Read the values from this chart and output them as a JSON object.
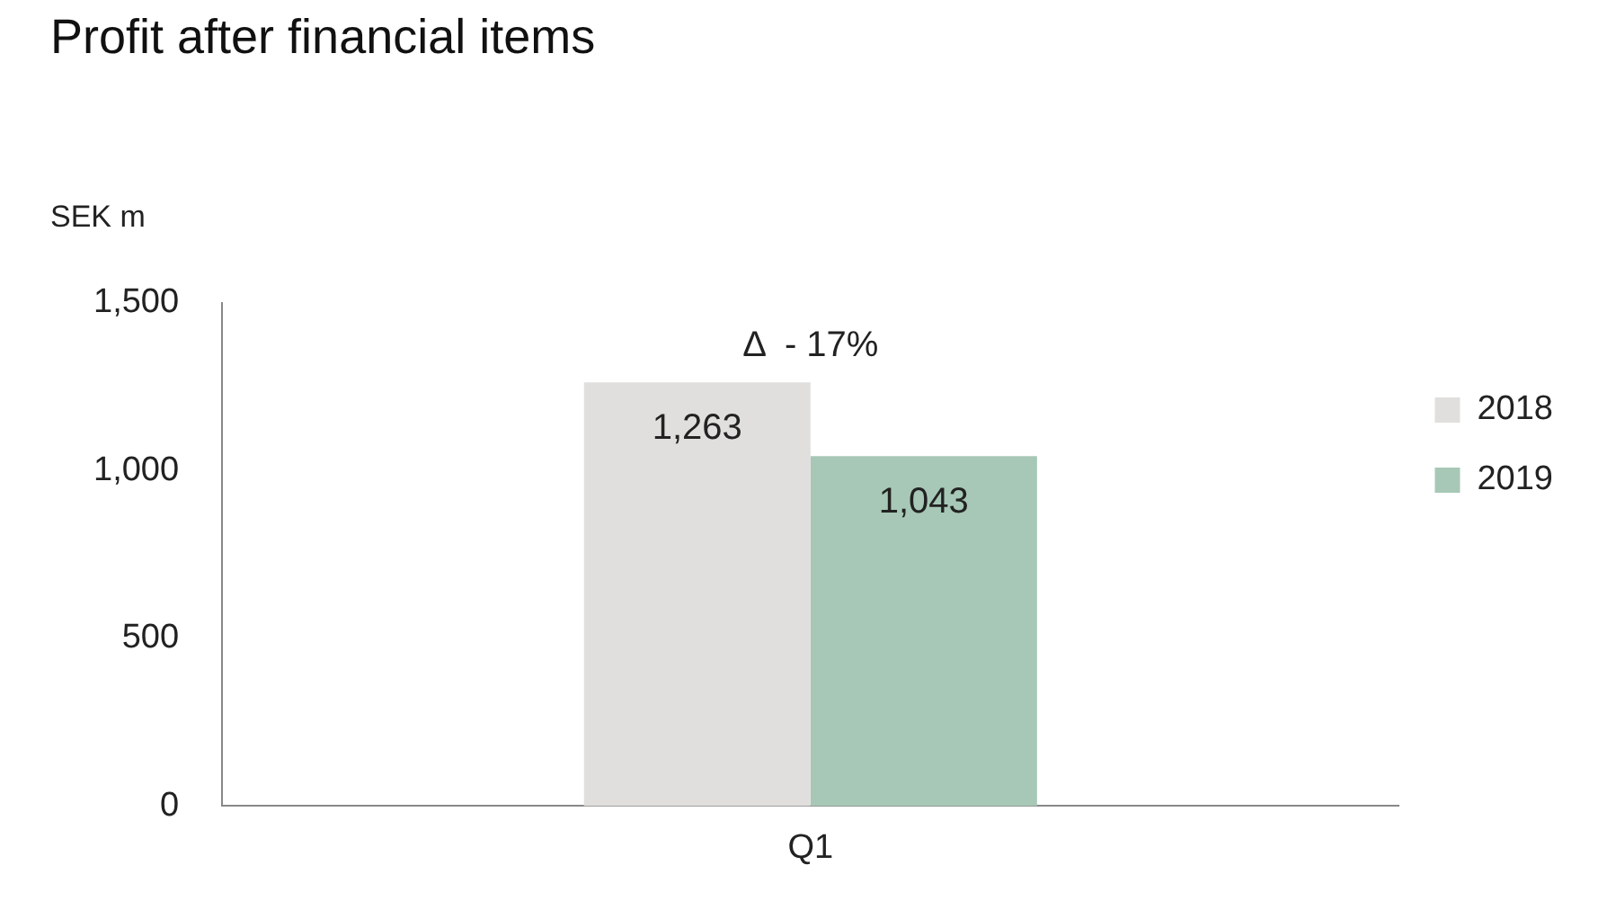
{
  "chart_data": {
    "type": "bar",
    "title": "Profit after financial items",
    "ylabel": "SEK m",
    "categories": [
      "Q1"
    ],
    "series": [
      {
        "name": "2018",
        "color": "#e0dfdd",
        "values": [
          1263
        ]
      },
      {
        "name": "2019",
        "color": "#a7c8b6",
        "values": [
          1043
        ]
      }
    ],
    "value_labels": [
      [
        "1,263"
      ],
      [
        "1,043"
      ]
    ],
    "annotations": [
      "Δ  - 17%"
    ],
    "ylim": [
      0,
      1500
    ],
    "yticks": [
      {
        "value": 0,
        "label": "0"
      },
      {
        "value": 500,
        "label": "500"
      },
      {
        "value": 1000,
        "label": "1,000"
      },
      {
        "value": 1500,
        "label": "1,500"
      }
    ],
    "grid": false,
    "legend": "right"
  }
}
